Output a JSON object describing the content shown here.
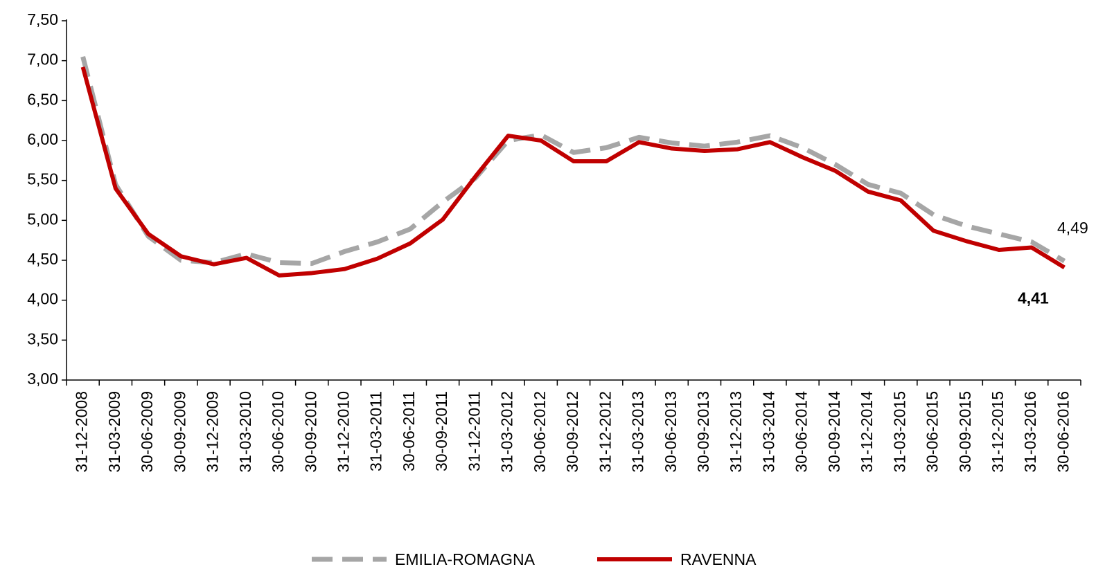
{
  "chart_data": {
    "type": "line",
    "categories": [
      "31-12-2008",
      "31-03-2009",
      "30-06-2009",
      "30-09-2009",
      "31-12-2009",
      "31-03-2010",
      "30-06-2010",
      "30-09-2010",
      "31-12-2010",
      "31-03-2011",
      "30-06-2011",
      "30-09-2011",
      "31-12-2011",
      "31-03-2012",
      "30-06-2012",
      "30-09-2012",
      "31-12-2012",
      "31-03-2013",
      "30-06-2013",
      "30-09-2013",
      "31-12-2013",
      "31-03-2014",
      "30-06-2014",
      "30-09-2014",
      "31-12-2014",
      "31-03-2015",
      "30-06-2015",
      "30-09-2015",
      "31-12-2015",
      "31-03-2016",
      "30-06-2016"
    ],
    "series": [
      {
        "name": "EMILIA-ROMAGNA",
        "color": "#a6a6a6",
        "dashed": true,
        "values": [
          7.05,
          5.45,
          4.8,
          4.5,
          4.47,
          4.58,
          4.47,
          4.46,
          4.61,
          4.73,
          4.89,
          5.23,
          5.53,
          6.0,
          6.07,
          5.85,
          5.91,
          6.04,
          5.97,
          5.93,
          5.98,
          6.06,
          5.91,
          5.7,
          5.45,
          5.34,
          5.07,
          4.93,
          4.83,
          4.73,
          4.49
        ],
        "value_labels": [
          null,
          null,
          null,
          null,
          null,
          null,
          null,
          null,
          null,
          null,
          null,
          null,
          null,
          null,
          null,
          null,
          null,
          null,
          null,
          null,
          null,
          null,
          null,
          null,
          null,
          null,
          null,
          null,
          null,
          null,
          "4,49"
        ]
      },
      {
        "name": "RAVENNA",
        "color": "#c00000",
        "dashed": false,
        "values": [
          6.92,
          5.4,
          4.83,
          4.55,
          4.45,
          4.53,
          4.31,
          4.34,
          4.39,
          4.52,
          4.71,
          5.01,
          5.55,
          6.06,
          6.0,
          5.74,
          5.74,
          5.98,
          5.9,
          5.87,
          5.89,
          5.98,
          5.79,
          5.62,
          5.36,
          5.25,
          4.87,
          4.74,
          4.63,
          4.66,
          4.41
        ],
        "value_labels": [
          null,
          null,
          null,
          null,
          null,
          null,
          null,
          null,
          null,
          null,
          null,
          null,
          null,
          null,
          null,
          null,
          null,
          null,
          null,
          null,
          null,
          null,
          null,
          null,
          null,
          null,
          null,
          null,
          null,
          null,
          "4,41"
        ]
      }
    ],
    "ylim": [
      3.0,
      7.5
    ],
    "yticks": [
      {
        "value": 3.0,
        "label": "3,00"
      },
      {
        "value": 3.5,
        "label": "3,50"
      },
      {
        "value": 4.0,
        "label": "4,00"
      },
      {
        "value": 4.5,
        "label": "4,50"
      },
      {
        "value": 5.0,
        "label": "5,00"
      },
      {
        "value": 5.5,
        "label": "5,50"
      },
      {
        "value": 6.0,
        "label": "6,00"
      },
      {
        "value": 6.5,
        "label": "6,50"
      },
      {
        "value": 7.0,
        "label": "7,00"
      },
      {
        "value": 7.5,
        "label": "7,50"
      }
    ],
    "grid": false,
    "legend": "bottom"
  }
}
